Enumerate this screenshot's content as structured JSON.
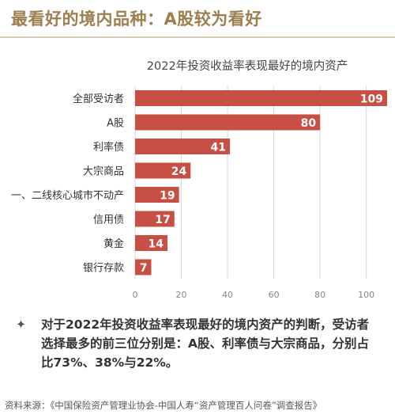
{
  "page_title": "最看好的境内品种：A股较为看好",
  "takeaway": {
    "bullet": "✦",
    "text": "对于2022年投资收益率表现最好的境内资产的判断，受访者选择最多的前三位分别是：A股、利率债与大宗商品，分别占比73%、38%与22%。"
  },
  "source": "资料来源：《中国保险资产管理业协会-中国人寿“资产管理百人问卷”调查报告》",
  "colors": {
    "bar": "#c84f44",
    "title": "#9c7f4e",
    "grid": "#d8d8d8"
  },
  "chart_data": {
    "type": "bar",
    "orientation": "horizontal",
    "title": "2022年投资收益率表现最好的境内资产",
    "categories": [
      "全部受访者",
      "A股",
      "利率债",
      "大宗商品",
      "一、二线核心城市不动产",
      "信用债",
      "黄金",
      "银行存款"
    ],
    "values": [
      109,
      80,
      41,
      24,
      19,
      17,
      14,
      7
    ],
    "xlim": [
      0,
      109
    ],
    "xticks": [
      0,
      20,
      40,
      60,
      80,
      100
    ],
    "grid": true,
    "legend": "none"
  }
}
